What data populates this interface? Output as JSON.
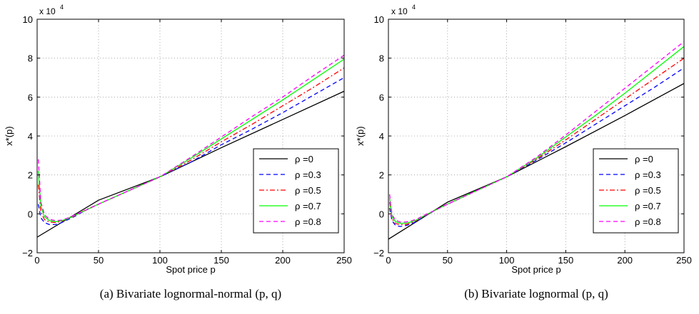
{
  "chart_data": [
    {
      "type": "line",
      "caption": "(a)  Bivariate lognormal-normal (p, q)",
      "xlabel": "Spot price p",
      "ylabel": "x*(p)",
      "y_multiplier": "x 10",
      "y_multiplier_exp": "4",
      "xlim": [
        0,
        250
      ],
      "ylim": [
        -2,
        10
      ],
      "xticks": [
        "0",
        "50",
        "100",
        "150",
        "200",
        "250"
      ],
      "yticks": [
        "−2",
        "0",
        "2",
        "4",
        "6",
        "8",
        "10"
      ],
      "grid": true,
      "legend_position": "lower-right",
      "series": [
        {
          "name": "ρ =0",
          "color": "#000000",
          "dash": "",
          "x": [
            0,
            50,
            100,
            150,
            200,
            250
          ],
          "y": [
            -1.2,
            0.7,
            1.9,
            3.4,
            4.85,
            6.3
          ]
        },
        {
          "name": "ρ =0.3",
          "color": "#0000ff",
          "dash": "6,4",
          "x": [
            1,
            3,
            6,
            10,
            15,
            20,
            25,
            30,
            40,
            50,
            75,
            100,
            125,
            150,
            175,
            200,
            225,
            250
          ],
          "y": [
            0.5,
            -0.2,
            -0.45,
            -0.55,
            -0.55,
            -0.45,
            -0.3,
            -0.15,
            0.2,
            0.5,
            1.2,
            1.9,
            2.65,
            3.55,
            4.35,
            5.2,
            6.1,
            7.0
          ]
        },
        {
          "name": "ρ =0.5",
          "color": "#ff0000",
          "dash": "7,3,2,3",
          "x": [
            1,
            3,
            6,
            10,
            15,
            20,
            25,
            30,
            40,
            50,
            75,
            100,
            125,
            150,
            175,
            200,
            225,
            250
          ],
          "y": [
            1.5,
            0.1,
            -0.3,
            -0.42,
            -0.45,
            -0.38,
            -0.25,
            -0.12,
            0.22,
            0.5,
            1.2,
            1.9,
            2.75,
            3.7,
            4.6,
            5.55,
            6.5,
            7.5
          ]
        },
        {
          "name": "ρ =0.7",
          "color": "#00ff00",
          "dash": "",
          "x": [
            1,
            3,
            6,
            10,
            15,
            20,
            25,
            30,
            40,
            50,
            75,
            100,
            125,
            150,
            175,
            200,
            225,
            250
          ],
          "y": [
            2.2,
            0.4,
            -0.15,
            -0.35,
            -0.4,
            -0.35,
            -0.25,
            -0.1,
            0.2,
            0.5,
            1.2,
            1.9,
            2.85,
            3.85,
            4.85,
            5.85,
            6.9,
            7.95
          ]
        },
        {
          "name": "ρ =0.8",
          "color": "#ff00ff",
          "dash": "6,4",
          "x": [
            1,
            3,
            6,
            10,
            15,
            20,
            25,
            30,
            40,
            50,
            75,
            100,
            125,
            150,
            175,
            200,
            225,
            250
          ],
          "y": [
            2.8,
            0.6,
            -0.05,
            -0.28,
            -0.35,
            -0.32,
            -0.22,
            -0.08,
            0.2,
            0.5,
            1.2,
            1.9,
            2.9,
            3.95,
            5.0,
            6.0,
            7.1,
            8.15
          ]
        }
      ]
    },
    {
      "type": "line",
      "caption": "(b)  Bivariate lognormal (p, q)",
      "xlabel": "Spot price p",
      "ylabel": "x*(p)",
      "y_multiplier": "x 10",
      "y_multiplier_exp": "4",
      "xlim": [
        0,
        250
      ],
      "ylim": [
        -2,
        10
      ],
      "xticks": [
        "0",
        "50",
        "100",
        "150",
        "200",
        "250"
      ],
      "yticks": [
        "−2",
        "0",
        "2",
        "4",
        "6",
        "8",
        "10"
      ],
      "grid": true,
      "legend_position": "lower-right",
      "series": [
        {
          "name": "ρ =0",
          "color": "#000000",
          "dash": "",
          "x": [
            0,
            50,
            100,
            150,
            200,
            250
          ],
          "y": [
            -1.3,
            0.6,
            1.9,
            3.45,
            5.05,
            6.7
          ]
        },
        {
          "name": "ρ =0.3",
          "color": "#0000ff",
          "dash": "6,4",
          "x": [
            1,
            3,
            6,
            10,
            15,
            20,
            25,
            30,
            40,
            50,
            75,
            100,
            125,
            150,
            175,
            200,
            225,
            250
          ],
          "y": [
            0.3,
            -0.35,
            -0.6,
            -0.65,
            -0.6,
            -0.5,
            -0.35,
            -0.15,
            0.2,
            0.5,
            1.2,
            1.9,
            2.75,
            3.65,
            4.6,
            5.55,
            6.5,
            7.5
          ]
        },
        {
          "name": "ρ =0.5",
          "color": "#ff0000",
          "dash": "7,3,2,3",
          "x": [
            1,
            3,
            6,
            10,
            15,
            20,
            25,
            30,
            40,
            50,
            75,
            100,
            125,
            150,
            175,
            200,
            225,
            250
          ],
          "y": [
            0.6,
            -0.25,
            -0.5,
            -0.55,
            -0.55,
            -0.45,
            -0.3,
            -0.12,
            0.2,
            0.5,
            1.2,
            1.9,
            2.8,
            3.8,
            4.85,
            5.9,
            6.95,
            8.0
          ]
        },
        {
          "name": "ρ =0.7",
          "color": "#00ff00",
          "dash": "",
          "x": [
            1,
            3,
            6,
            10,
            15,
            20,
            25,
            30,
            40,
            50,
            75,
            100,
            125,
            150,
            175,
            200,
            225,
            250
          ],
          "y": [
            0.8,
            -0.15,
            -0.4,
            -0.48,
            -0.48,
            -0.4,
            -0.28,
            -0.1,
            0.2,
            0.5,
            1.2,
            1.9,
            2.85,
            3.95,
            5.05,
            6.2,
            7.4,
            8.6
          ]
        },
        {
          "name": "ρ =0.8",
          "color": "#ff00ff",
          "dash": "6,4",
          "x": [
            1,
            3,
            6,
            10,
            15,
            20,
            25,
            30,
            40,
            50,
            75,
            100,
            125,
            150,
            175,
            200,
            225,
            250
          ],
          "y": [
            1.0,
            -0.05,
            -0.32,
            -0.42,
            -0.42,
            -0.35,
            -0.24,
            -0.08,
            0.2,
            0.5,
            1.2,
            1.9,
            2.9,
            4.05,
            5.25,
            6.45,
            7.65,
            8.85
          ]
        }
      ]
    }
  ]
}
